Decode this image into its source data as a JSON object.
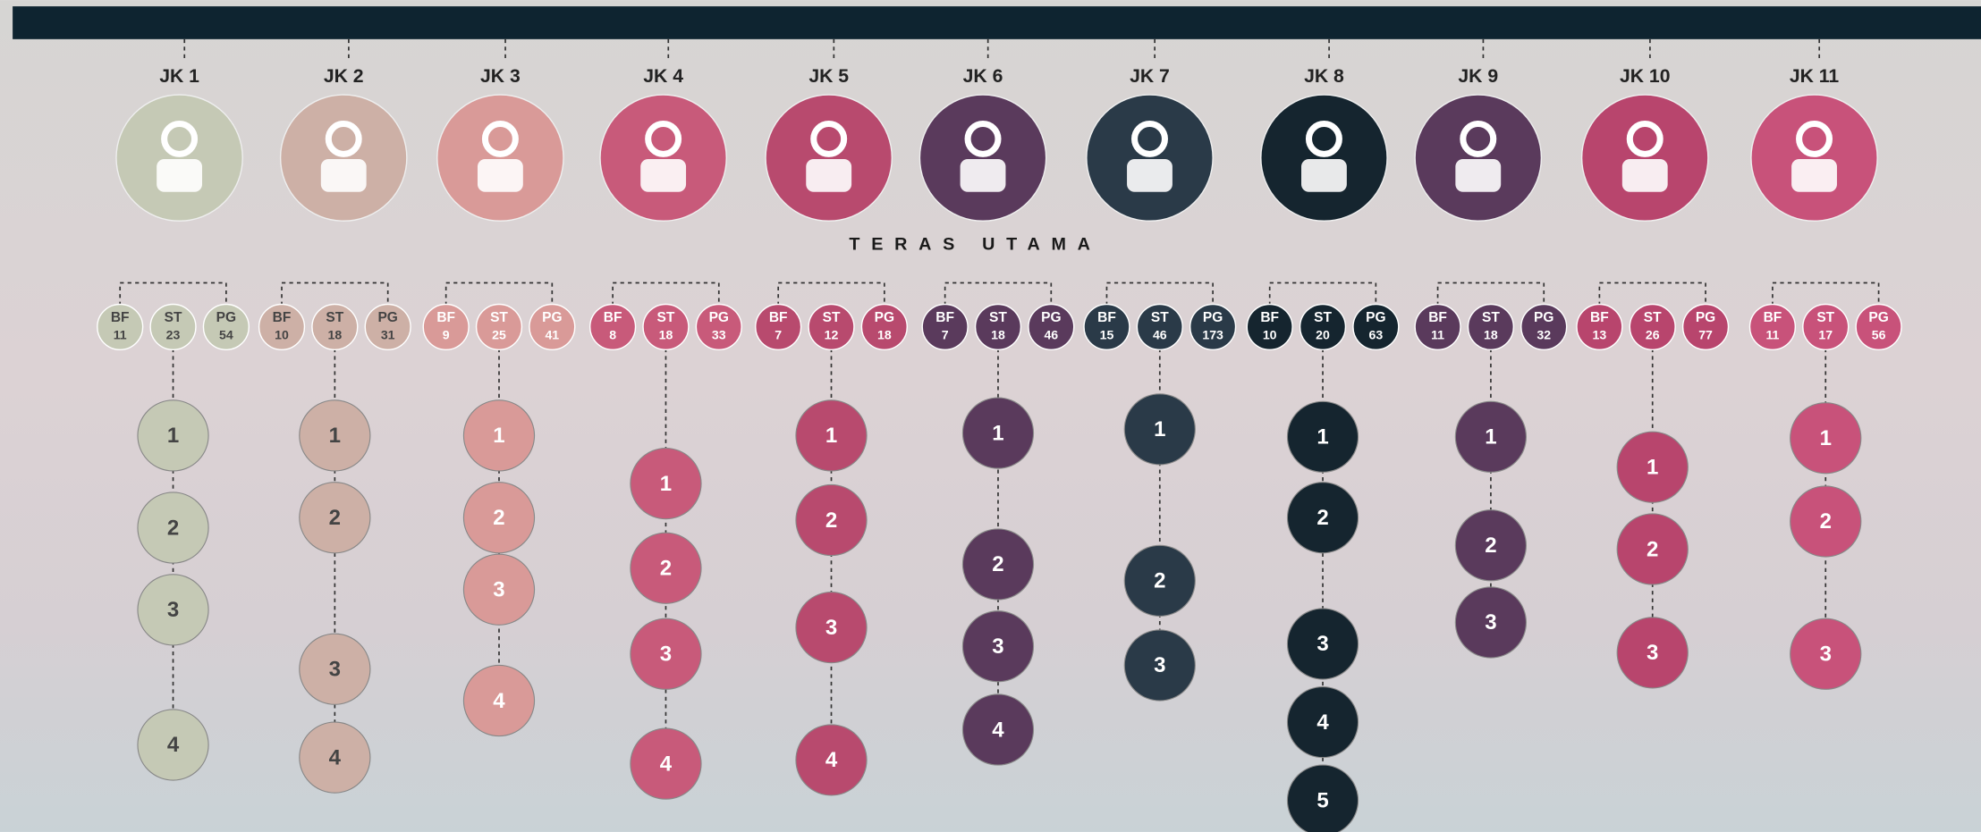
{
  "subtitle": "TERAS UTAMA",
  "columns": [
    {
      "label": "JK 1",
      "stats": [
        {
          "label": "BF",
          "value": 11
        },
        {
          "label": "ST",
          "value": 23
        },
        {
          "label": "PG",
          "value": 54
        }
      ],
      "nodes": [
        1,
        2,
        3,
        4
      ]
    },
    {
      "label": "JK 2",
      "stats": [
        {
          "label": "BF",
          "value": 10
        },
        {
          "label": "ST",
          "value": 18
        },
        {
          "label": "PG",
          "value": 31
        }
      ],
      "nodes": [
        1,
        2,
        3,
        4
      ]
    },
    {
      "label": "JK 3",
      "stats": [
        {
          "label": "BF",
          "value": 9
        },
        {
          "label": "ST",
          "value": 25
        },
        {
          "label": "PG",
          "value": 41
        }
      ],
      "nodes": [
        1,
        2,
        3,
        4
      ]
    },
    {
      "label": "JK 4",
      "stats": [
        {
          "label": "BF",
          "value": 8
        },
        {
          "label": "ST",
          "value": 18
        },
        {
          "label": "PG",
          "value": 33
        }
      ],
      "nodes": [
        1,
        2,
        3,
        4
      ]
    },
    {
      "label": "JK 5",
      "stats": [
        {
          "label": "BF",
          "value": 7
        },
        {
          "label": "ST",
          "value": 12
        },
        {
          "label": "PG",
          "value": 18
        }
      ],
      "nodes": [
        1,
        2,
        3,
        4
      ]
    },
    {
      "label": "JK 6",
      "stats": [
        {
          "label": "BF",
          "value": 7
        },
        {
          "label": "ST",
          "value": 18
        },
        {
          "label": "PG",
          "value": 46
        }
      ],
      "nodes": [
        1,
        2,
        3,
        4
      ]
    },
    {
      "label": "JK 7",
      "stats": [
        {
          "label": "BF",
          "value": 15
        },
        {
          "label": "ST",
          "value": 46
        },
        {
          "label": "PG",
          "value": 173
        }
      ],
      "nodes": [
        1,
        2,
        3
      ]
    },
    {
      "label": "JK 8",
      "stats": [
        {
          "label": "BF",
          "value": 10
        },
        {
          "label": "ST",
          "value": 20
        },
        {
          "label": "PG",
          "value": 63
        }
      ],
      "nodes": [
        1,
        2,
        3,
        4,
        5
      ]
    },
    {
      "label": "JK 9",
      "stats": [
        {
          "label": "BF",
          "value": 11
        },
        {
          "label": "ST",
          "value": 18
        },
        {
          "label": "PG",
          "value": 32
        }
      ],
      "nodes": [
        1,
        2,
        3
      ]
    },
    {
      "label": "JK 10",
      "stats": [
        {
          "label": "BF",
          "value": 13
        },
        {
          "label": "ST",
          "value": 26
        },
        {
          "label": "PG",
          "value": 77
        }
      ],
      "nodes": [
        1,
        2,
        3
      ]
    },
    {
      "label": "JK 11",
      "stats": [
        {
          "label": "BF",
          "value": 11
        },
        {
          "label": "ST",
          "value": 17
        },
        {
          "label": "PG",
          "value": 56
        }
      ],
      "nodes": [
        1,
        2,
        3
      ]
    }
  ]
}
